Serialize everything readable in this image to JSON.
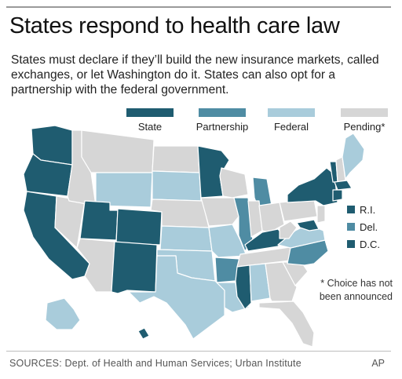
{
  "header": {
    "title": "States respond to health care law",
    "subtitle": "States must declare if they’ll build the new insurance markets, called exchanges, or let Washington do it. States can also opt for a partnership with the federal government."
  },
  "colors": {
    "state": "#1f5c70",
    "partnership": "#4f8ca3",
    "federal": "#a9ccdb",
    "pending": "#d6d6d6",
    "outline": "#ffffff"
  },
  "legend": {
    "state": "State",
    "partnership": "Partnership",
    "federal": "Federal",
    "pending": "Pending*"
  },
  "small_states_key": [
    {
      "label": "R.I.",
      "category": "state"
    },
    {
      "label": "Del.",
      "category": "partnership"
    },
    {
      "label": "D.C.",
      "category": "state"
    }
  ],
  "states": {
    "WA": "state",
    "OR": "state",
    "CA": "state",
    "NV": "pending",
    "ID": "pending",
    "MT": "pending",
    "WY": "federal",
    "UT": "state",
    "CO": "state",
    "AZ": "pending",
    "NM": "state",
    "ND": "pending",
    "SD": "federal",
    "NE": "pending",
    "KS": "federal",
    "OK": "federal",
    "TX": "federal",
    "MN": "state",
    "IA": "pending",
    "MO": "federal",
    "AR": "partnership",
    "LA": "federal",
    "WI": "pending",
    "IL": "partnership",
    "MI": "partnership",
    "IN": "pending",
    "OH": "pending",
    "KY": "state",
    "TN": "pending",
    "MS": "state",
    "AL": "federal",
    "GA": "pending",
    "FL": "pending",
    "SC": "pending",
    "NC": "partnership",
    "VA": "federal",
    "WV": "pending",
    "PA": "pending",
    "NY": "state",
    "VT": "state",
    "NH": "pending",
    "ME": "federal",
    "MA": "state",
    "CT": "state",
    "NJ": "pending",
    "MD": "state",
    "AK": "federal",
    "HI": "state"
  },
  "note": "* Choice has not been announced",
  "footer": {
    "sources": "SOURCES: Dept. of Health and Human Services; Urban Institute",
    "credit": "AP"
  }
}
